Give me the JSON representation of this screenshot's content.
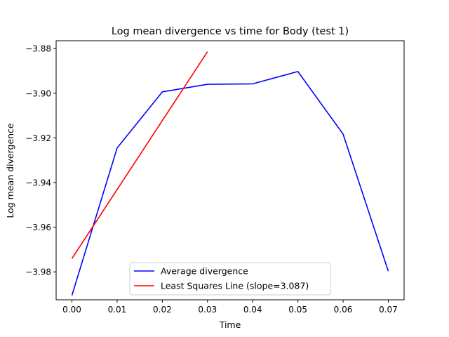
{
  "chart_data": {
    "type": "line",
    "title": "Log mean divergence vs time for Body (test 1)",
    "xlabel": "Time",
    "ylabel": "Log mean divergence",
    "xlim": [
      -0.0035,
      0.0735
    ],
    "ylim": [
      -3.9925,
      -3.8765
    ],
    "xticks": [
      0.0,
      0.01,
      0.02,
      0.03,
      0.04,
      0.05,
      0.06,
      0.07
    ],
    "xtick_labels": [
      "0.00",
      "0.01",
      "0.02",
      "0.03",
      "0.04",
      "0.05",
      "0.06",
      "0.07"
    ],
    "yticks": [
      -3.98,
      -3.96,
      -3.94,
      -3.92,
      -3.9,
      -3.88
    ],
    "ytick_labels": [
      "−3.98",
      "−3.96",
      "−3.94",
      "−3.92",
      "−3.90",
      "−3.88"
    ],
    "grid": false,
    "legend_position": "bottom-center",
    "series": [
      {
        "name": "Average divergence",
        "color": "#0000ff",
        "x": [
          0.0,
          0.01,
          0.02,
          0.03,
          0.04,
          0.05,
          0.06,
          0.07
        ],
        "y": [
          -3.9905,
          -3.9245,
          -3.8994,
          -3.896,
          -3.8958,
          -3.8903,
          -3.9183,
          -3.9797
        ]
      },
      {
        "name": "Least Squares Line (slope=3.087)",
        "color": "#ff0000",
        "x": [
          0.0,
          0.03
        ],
        "y": [
          -3.974,
          -3.8814
        ]
      }
    ]
  }
}
